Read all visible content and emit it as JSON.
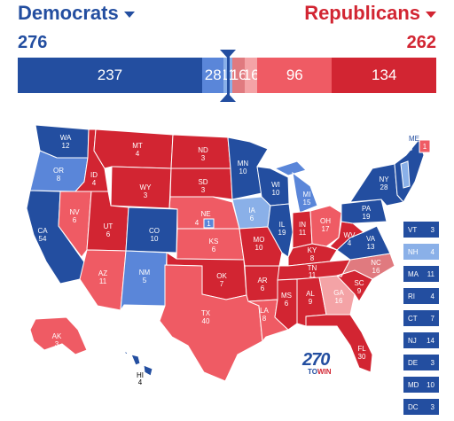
{
  "header": {
    "dem_label": "Democrats",
    "rep_label": "Republicans",
    "dem_total": "276",
    "rep_total": "262"
  },
  "bar_segments": [
    {
      "label": "237",
      "value": 237,
      "color": "#234ea0"
    },
    {
      "label": "28",
      "value": 28,
      "color": "#5a86d9"
    },
    {
      "label": "11",
      "value": 11,
      "color": "#8ab0e8"
    },
    {
      "label": "16",
      "value": 16,
      "color": "#e07a7f"
    },
    {
      "label": "16",
      "value": 16,
      "color": "#f4a3a6"
    },
    {
      "label": "96",
      "value": 96,
      "color": "#ef5b64"
    },
    {
      "label": "134",
      "value": 134,
      "color": "#d22532"
    }
  ],
  "colors": {
    "dem_solid": "#234ea0",
    "dem_likely": "#5a86d9",
    "dem_lean": "#8ab0e8",
    "tossup": "#e07a7f",
    "rep_lean": "#f4a3a6",
    "rep_likely": "#ef5b64",
    "rep_solid": "#d22532"
  },
  "states": {
    "WA": "WA",
    "WA_ev": "12",
    "OR": "OR",
    "OR_ev": "8",
    "CA": "CA",
    "CA_ev": "54",
    "NV": "NV",
    "NV_ev": "6",
    "ID": "ID",
    "ID_ev": "4",
    "MT": "MT",
    "MT_ev": "4",
    "WY": "WY",
    "WY_ev": "3",
    "UT": "UT",
    "UT_ev": "6",
    "AZ": "AZ",
    "AZ_ev": "11",
    "CO": "CO",
    "CO_ev": "10",
    "NM": "NM",
    "NM_ev": "5",
    "ND": "ND",
    "ND_ev": "3",
    "SD": "SD",
    "SD_ev": "3",
    "NE": "NE",
    "NE_ev": "4",
    "NE2_ev": "1",
    "KS": "KS",
    "KS_ev": "6",
    "OK": "OK",
    "OK_ev": "7",
    "TX": "TX",
    "TX_ev": "40",
    "MN": "MN",
    "MN_ev": "10",
    "IA": "IA",
    "IA_ev": "6",
    "MO": "MO",
    "MO_ev": "10",
    "AR": "AR",
    "AR_ev": "6",
    "LA": "LA",
    "LA_ev": "8",
    "WI": "WI",
    "WI_ev": "10",
    "IL": "IL",
    "IL_ev": "19",
    "MI": "MI",
    "MI_ev": "15",
    "IN": "IN",
    "IN_ev": "11",
    "OH": "OH",
    "OH_ev": "17",
    "KY": "KY",
    "KY_ev": "8",
    "TN": "TN",
    "TN_ev": "11",
    "MS": "MS",
    "MS_ev": "6",
    "AL": "AL",
    "AL_ev": "9",
    "GA": "GA",
    "GA_ev": "16",
    "FL": "FL",
    "FL_ev": "30",
    "SC": "SC",
    "SC_ev": "9",
    "NC": "NC",
    "NC_ev": "16",
    "VA": "VA",
    "VA_ev": "13",
    "WV": "WV",
    "WV_ev": "4",
    "PA": "PA",
    "PA_ev": "19",
    "NY": "NY",
    "NY_ev": "28",
    "ME": "ME",
    "ME_ev": "3",
    "ME2_ev": "1",
    "AK": "AK",
    "AK_ev": "3",
    "HI": "HI",
    "HI_ev": "4"
  },
  "small_states": [
    {
      "abbr": "VT",
      "ev": "3",
      "color": "#234ea0"
    },
    {
      "abbr": "NH",
      "ev": "4",
      "color": "#8ab0e8"
    },
    {
      "abbr": "MA",
      "ev": "11",
      "color": "#234ea0"
    },
    {
      "abbr": "RI",
      "ev": "4",
      "color": "#234ea0"
    },
    {
      "abbr": "CT",
      "ev": "7",
      "color": "#234ea0"
    },
    {
      "abbr": "NJ",
      "ev": "14",
      "color": "#234ea0"
    },
    {
      "abbr": "DE",
      "ev": "3",
      "color": "#234ea0"
    },
    {
      "abbr": "MD",
      "ev": "10",
      "color": "#234ea0"
    },
    {
      "abbr": "DC",
      "ev": "3",
      "color": "#234ea0"
    }
  ],
  "logo": {
    "main": "270",
    "to": "TO",
    "win": "WIN"
  }
}
